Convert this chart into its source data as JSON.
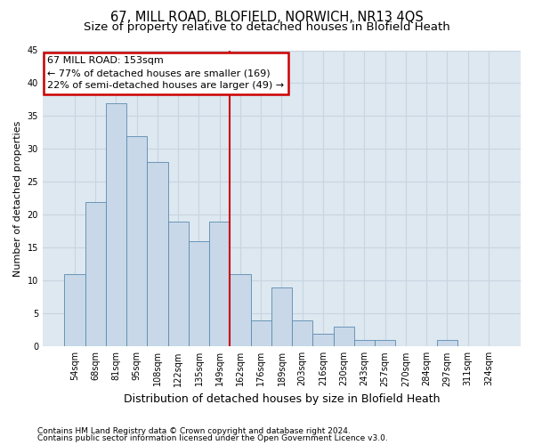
{
  "title": "67, MILL ROAD, BLOFIELD, NORWICH, NR13 4QS",
  "subtitle": "Size of property relative to detached houses in Blofield Heath",
  "xlabel": "Distribution of detached houses by size in Blofield Heath",
  "ylabel": "Number of detached properties",
  "categories": [
    "54sqm",
    "68sqm",
    "81sqm",
    "95sqm",
    "108sqm",
    "122sqm",
    "135sqm",
    "149sqm",
    "162sqm",
    "176sqm",
    "189sqm",
    "203sqm",
    "216sqm",
    "230sqm",
    "243sqm",
    "257sqm",
    "270sqm",
    "284sqm",
    "297sqm",
    "311sqm",
    "324sqm"
  ],
  "values": [
    11,
    22,
    37,
    32,
    28,
    19,
    16,
    19,
    11,
    4,
    9,
    4,
    2,
    3,
    1,
    1,
    0,
    0,
    1,
    0,
    0
  ],
  "bar_color": "#c8d8e8",
  "bar_edge_color": "#5a8ab0",
  "grid_color": "#c8d4e0",
  "bg_color": "#dde8f0",
  "annotation_box_text": "67 MILL ROAD: 153sqm\n← 77% of detached houses are smaller (169)\n22% of semi-detached houses are larger (49) →",
  "annotation_box_color": "#cc0000",
  "vline_x_index": 7.5,
  "vline_color": "#cc0000",
  "ylim": [
    0,
    45
  ],
  "yticks": [
    0,
    5,
    10,
    15,
    20,
    25,
    30,
    35,
    40,
    45
  ],
  "footer1": "Contains HM Land Registry data © Crown copyright and database right 2024.",
  "footer2": "Contains public sector information licensed under the Open Government Licence v3.0.",
  "title_fontsize": 10.5,
  "subtitle_fontsize": 9.5,
  "xlabel_fontsize": 9,
  "ylabel_fontsize": 8,
  "tick_fontsize": 7,
  "footer_fontsize": 6.5,
  "annotation_fontsize": 8
}
